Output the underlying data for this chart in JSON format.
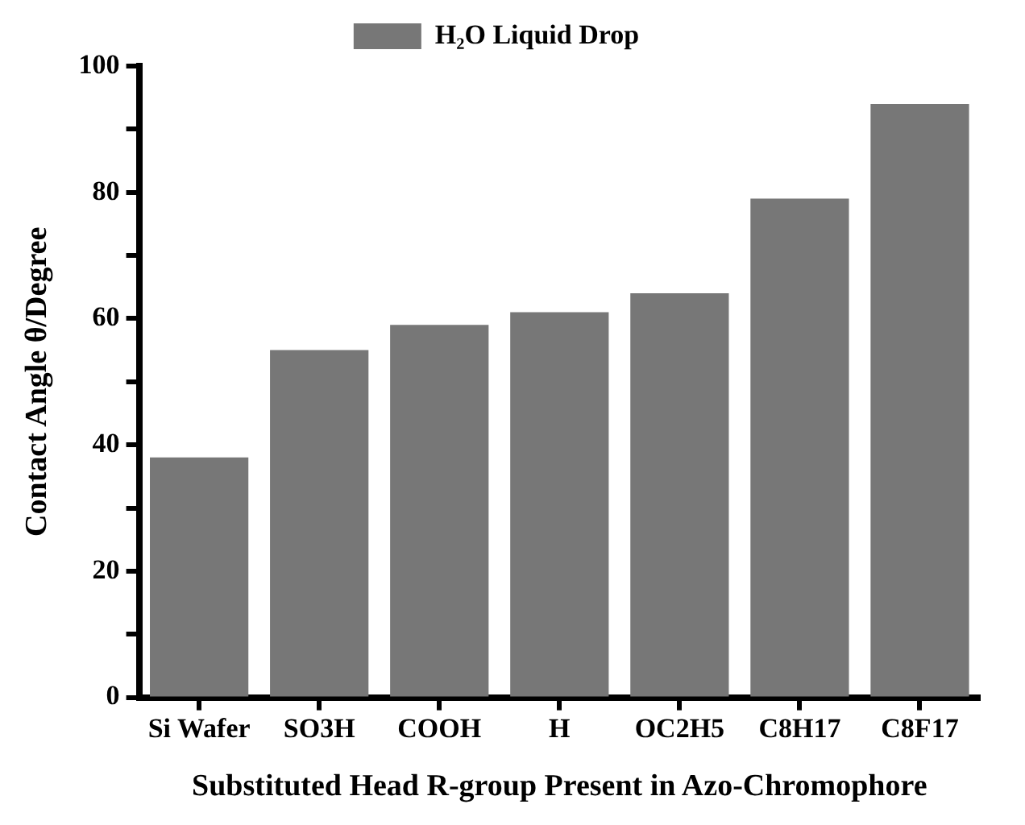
{
  "chart_data": {
    "type": "bar",
    "xlabel": "Substituted Head R-group Present in Azo-Chromophore",
    "ylabel": "Contact Angle θ/Degree",
    "categories": [
      "Si Wafer",
      "SO3H",
      "COOH",
      "H",
      "OC2H5",
      "C8H17",
      "C8F17"
    ],
    "series": [
      {
        "name": "H₂O Liquid Drop",
        "color": "#777777",
        "values": [
          38,
          55,
          59,
          61,
          64,
          79,
          94
        ]
      }
    ],
    "ylim": [
      0,
      100
    ],
    "yticks": [
      0,
      {
        "value": 10,
        "label": null
      },
      20,
      {
        "value": 30,
        "label": null
      },
      40,
      {
        "value": 50,
        "label": null
      },
      60,
      {
        "value": 70,
        "label": null
      },
      80,
      {
        "value": 90,
        "label": null
      },
      100
    ],
    "legend": "top",
    "grid": false
  }
}
